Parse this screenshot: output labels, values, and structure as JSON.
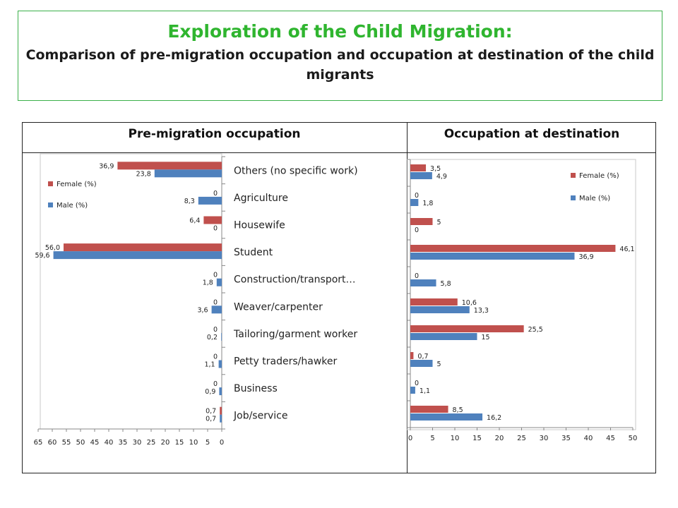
{
  "title": {
    "main": "Exploration of the Child Migration:",
    "subtitle": "Comparison of pre-migration occupation and occupation at destination of the child migrants"
  },
  "table": {
    "left_header": "Pre-migration occupation",
    "right_header": "Occupation at destination"
  },
  "colors": {
    "female": "#c0504d",
    "male": "#4f81bd",
    "title": "#2fb52f",
    "frame": "#3cb04a"
  },
  "chart_data": [
    {
      "type": "bar",
      "orientation": "horizontal",
      "x_reversed": true,
      "categories": [
        "Others (no specific work)",
        "Agriculture",
        "Housewife",
        "Student",
        "Construction/transport…",
        "Weaver/carpenter",
        "Tailoring/garment worker",
        "Petty traders/hawker",
        "Business",
        "Job/service"
      ],
      "series": [
        {
          "name": "Female (%)",
          "values": [
            36.9,
            0,
            6.4,
            56.0,
            0,
            0,
            0,
            0,
            0,
            0.7
          ],
          "labels": [
            "36,9",
            "0",
            "6,4",
            "56,0",
            "0",
            "0",
            "0",
            "0",
            "0",
            "0,7"
          ]
        },
        {
          "name": "Male (%)",
          "values": [
            23.8,
            8.3,
            0,
            59.6,
            1.8,
            3.6,
            0.2,
            1.1,
            0.9,
            0.7
          ],
          "labels": [
            "23,8",
            "8,3",
            "0",
            "59,6",
            "1,8",
            "3,6",
            "0,2",
            "1,1",
            "0,9",
            "0,7"
          ]
        }
      ],
      "xlim": [
        0,
        65
      ],
      "xticks": [
        65,
        60,
        55,
        50,
        45,
        40,
        35,
        30,
        25,
        20,
        15,
        10,
        5,
        0
      ],
      "legend": "top-left"
    },
    {
      "type": "bar",
      "orientation": "horizontal",
      "series": [
        {
          "name": "Female (%)",
          "values": [
            3.5,
            0,
            5,
            46.1,
            0,
            10.6,
            25.5,
            0.7,
            0,
            8.5
          ],
          "labels": [
            "3,5",
            "0",
            "5",
            "46,1",
            "0",
            "10,6",
            "25,5",
            "0,7",
            "0",
            "8,5"
          ]
        },
        {
          "name": "Male (%)",
          "values": [
            4.9,
            1.8,
            0,
            36.9,
            5.8,
            13.3,
            15,
            5,
            1.1,
            16.2
          ],
          "labels": [
            "4,9",
            "1,8",
            "0",
            "36,9",
            "5,8",
            "13,3",
            "15",
            "5",
            "1,1",
            "16,2"
          ]
        }
      ],
      "xlim": [
        0,
        50
      ],
      "xticks": [
        0,
        5,
        10,
        15,
        20,
        25,
        30,
        35,
        40,
        45,
        50
      ],
      "legend": "top-right"
    }
  ]
}
